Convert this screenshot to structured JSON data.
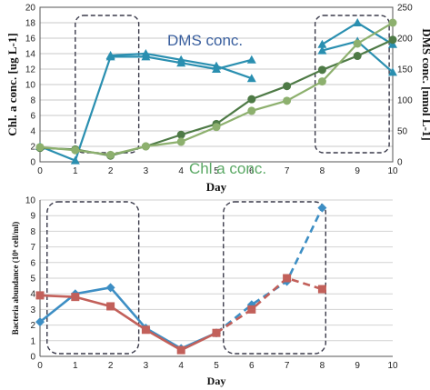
{
  "chart_data": [
    {
      "type": "line",
      "xlabel": "Day",
      "ylabel_left": "Chl. a conc. [ug L-1]",
      "ylabel_right": "DMS conc. [nmol L-1]",
      "ylim_left": [
        0,
        20
      ],
      "ylim_right": [
        0,
        250
      ],
      "xlim": [
        0,
        10
      ],
      "x_ticks": [
        "0",
        "1",
        "2",
        "3",
        "4",
        "5",
        "6",
        "7",
        "8",
        "9",
        "10"
      ],
      "y_left_ticks": [
        "0",
        "2",
        "4",
        "6",
        "8",
        "10",
        "12",
        "14",
        "16",
        "18",
        "20"
      ],
      "y_right_ticks": [
        "0",
        "50",
        "100",
        "150",
        "200",
        "250"
      ],
      "annotations": [
        "DMS conc.",
        "Chl a conc."
      ],
      "highlight_windows": [
        [
          1,
          2.8
        ],
        [
          7.8,
          9.9
        ]
      ],
      "series": [
        {
          "axis": "right",
          "color": "#2a8fb0",
          "marker": "triangle",
          "x": [
            0,
            1,
            2,
            3,
            4,
            5,
            6
          ],
          "y": [
            25,
            2,
            170,
            170,
            160,
            150,
            165
          ]
        },
        {
          "axis": "right",
          "color": "#2a8fb0",
          "marker": "triangle",
          "x": [
            2,
            3,
            4,
            5,
            6
          ],
          "y": [
            172,
            175,
            165,
            155,
            135
          ]
        },
        {
          "axis": "right",
          "color": "#2a8fb0",
          "marker": "triangle",
          "x": [
            8,
            9,
            10
          ],
          "y": [
            190,
            225,
            190
          ]
        },
        {
          "axis": "right",
          "color": "#2a8fb0",
          "marker": "triangle",
          "x": [
            8,
            9,
            10
          ],
          "y": [
            180,
            195,
            145
          ]
        },
        {
          "axis": "left",
          "color": "#4e7a46",
          "marker": "circle",
          "x": [
            0,
            1,
            2,
            3,
            4,
            5,
            6,
            7,
            8,
            9,
            10
          ],
          "y": [
            1.8,
            1.6,
            0.8,
            2.0,
            3.5,
            4.9,
            8.1,
            9.8,
            11.9,
            13.7,
            15.8
          ]
        },
        {
          "axis": "left",
          "color": "#8db06e",
          "marker": "circle",
          "x": [
            0,
            1,
            2,
            3,
            4,
            5,
            6,
            7,
            8,
            9,
            10
          ],
          "y": [
            1.9,
            1.5,
            0.9,
            2.0,
            2.6,
            4.5,
            6.6,
            7.9,
            10.4,
            15.3,
            18.0
          ]
        }
      ]
    },
    {
      "type": "line",
      "xlabel": "Day",
      "ylabel": "Bacteria abundance (10⁶ cell/ml)",
      "ylim": [
        0,
        10
      ],
      "xlim": [
        0,
        10
      ],
      "x_ticks": [
        "0",
        "1",
        "2",
        "3",
        "4",
        "5",
        "6",
        "7",
        "8",
        "9",
        "10"
      ],
      "y_ticks": [
        "0",
        "1",
        "2",
        "3",
        "4",
        "5",
        "6",
        "7",
        "8",
        "9",
        "10"
      ],
      "highlight_windows": [
        [
          0.2,
          2.8
        ],
        [
          5.2,
          8.1
        ]
      ],
      "series": [
        {
          "color": "#3d8ec4",
          "marker": "diamond",
          "dashed_from_x": 5,
          "x": [
            0,
            1,
            2,
            3,
            4,
            5,
            6,
            7,
            8
          ],
          "y": [
            2.2,
            4.0,
            4.4,
            1.8,
            0.5,
            1.5,
            3.3,
            4.8,
            9.5
          ]
        },
        {
          "color": "#c2605a",
          "marker": "square",
          "dashed_from_x": 5,
          "x": [
            0,
            1,
            2,
            3,
            4,
            5,
            6,
            7,
            8
          ],
          "y": [
            3.9,
            3.8,
            3.2,
            1.7,
            0.4,
            1.5,
            3.0,
            5.0,
            4.3
          ]
        }
      ]
    }
  ]
}
